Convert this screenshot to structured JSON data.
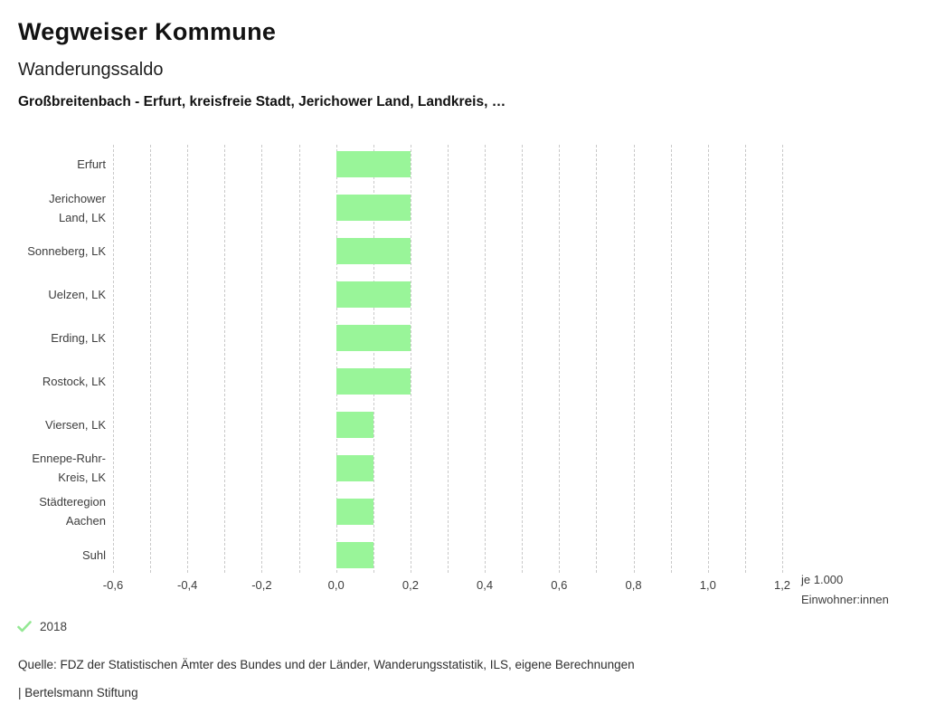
{
  "header": {
    "title": "Wegweiser Kommune",
    "subtitle": "Wanderungssaldo",
    "context": "Großbreitenbach - Erfurt, kreisfreie Stadt, Jerichower Land, Landkreis, …"
  },
  "chart_data": {
    "type": "bar",
    "orientation": "horizontal",
    "title": "Wanderungssaldo",
    "categories": [
      "Erfurt",
      "Jerichower Land, LK",
      "Sonneberg, LK",
      "Uelzen, LK",
      "Erding, LK",
      "Rostock, LK",
      "Viersen, LK",
      "Ennepe-Ruhr-Kreis, LK",
      "Städteregion Aachen",
      "Suhl"
    ],
    "category_lines": [
      [
        "Erfurt"
      ],
      [
        "Jerichower",
        "Land, LK"
      ],
      [
        "Sonneberg, LK"
      ],
      [
        "Uelzen, LK"
      ],
      [
        "Erding, LK"
      ],
      [
        "Rostock, LK"
      ],
      [
        "Viersen, LK"
      ],
      [
        "Ennepe-Ruhr-",
        "Kreis, LK"
      ],
      [
        "Städteregion",
        "Aachen"
      ],
      [
        "Suhl"
      ]
    ],
    "series": [
      {
        "name": "2018",
        "values": [
          0.2,
          0.2,
          0.2,
          0.2,
          0.2,
          0.2,
          0.1,
          0.1,
          0.1,
          0.1
        ]
      }
    ],
    "xlim": [
      -0.6,
      1.2
    ],
    "grid_step": 0.1,
    "grid_on": true,
    "x_ticks": [
      {
        "value": -0.6,
        "label": "-0,6"
      },
      {
        "value": -0.4,
        "label": "-0,4"
      },
      {
        "value": -0.2,
        "label": "-0,2"
      },
      {
        "value": 0.0,
        "label": "0,0"
      },
      {
        "value": 0.2,
        "label": "0,2"
      },
      {
        "value": 0.4,
        "label": "0,4"
      },
      {
        "value": 0.6,
        "label": "0,6"
      },
      {
        "value": 0.8,
        "label": "0,8"
      },
      {
        "value": 1.0,
        "label": "1,0"
      },
      {
        "value": 1.2,
        "label": "1,2"
      }
    ],
    "unit_label_lines": [
      "je 1.000",
      "Einwohner:innen"
    ],
    "legend_position": "bottom-left"
  },
  "legend": {
    "year": "2018",
    "check_icon": "checkmark-icon"
  },
  "footer": {
    "source": "Quelle: FDZ der Statistischen Ämter des Bundes und der Länder, Wanderungsstatistik, ILS, eigene Berechnungen",
    "attribution": "| Bertelsmann Stiftung"
  },
  "colors": {
    "bar": "#99f599",
    "check": "#94e894",
    "grid": "#c9c9c9",
    "text": "#3d3d3d"
  }
}
